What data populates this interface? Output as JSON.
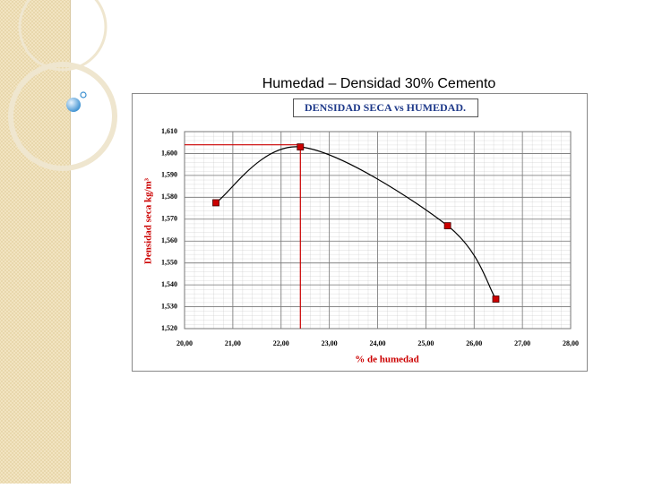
{
  "slide_title": "Humedad – Densidad 30% Cemento",
  "chart_data": {
    "type": "line",
    "title": "DENSIDAD SECA vs HUMEDAD.",
    "x_label": "% de humedad",
    "y_label": "Densidad seca kg/m³",
    "x": [
      20.65,
      22.4,
      25.45,
      26.45
    ],
    "series": [
      {
        "color": "#cc0000",
        "line_color": "#000000",
        "values": [
          1577.5,
          1603,
          1567,
          1533.5
        ]
      }
    ],
    "xlim": [
      20,
      28
    ],
    "xticks": [
      {
        "value": 20,
        "label": "20,00"
      },
      {
        "value": 21,
        "label": "21,00"
      },
      {
        "value": 22,
        "label": "22,00"
      },
      {
        "value": 23,
        "label": "23,00"
      },
      {
        "value": 24,
        "label": "24,00"
      },
      {
        "value": 25,
        "label": "25,00"
      },
      {
        "value": 26,
        "label": "26,00"
      },
      {
        "value": 27,
        "label": "27,00"
      },
      {
        "value": 28,
        "label": "28,00"
      }
    ],
    "ylim": [
      1520,
      1610
    ],
    "yticks": [
      {
        "value": 1520,
        "label": "1,520"
      },
      {
        "value": 1530,
        "label": "1,530"
      },
      {
        "value": 1540,
        "label": "1,540"
      },
      {
        "value": 1550,
        "label": "1,550"
      },
      {
        "value": 1560,
        "label": "1,560"
      },
      {
        "value": 1570,
        "label": "1,570"
      },
      {
        "value": 1580,
        "label": "1,580"
      },
      {
        "value": 1590,
        "label": "1,590"
      },
      {
        "value": 1600,
        "label": "1,600"
      },
      {
        "value": 1610,
        "label": "1,610"
      }
    ],
    "grid": true,
    "reference": {
      "x": 22.4,
      "y": 1604,
      "color": "#cc0000"
    }
  }
}
